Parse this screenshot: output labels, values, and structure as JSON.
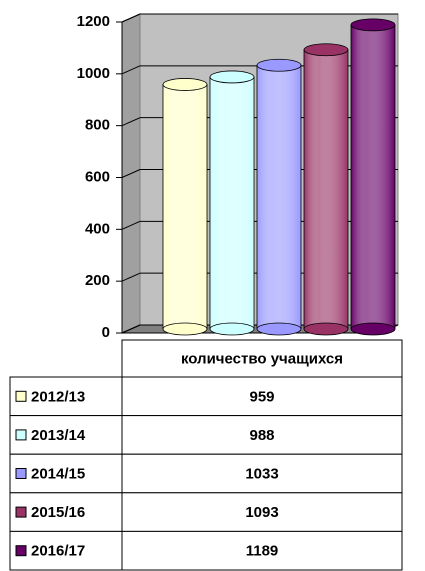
{
  "chart_data": {
    "type": "bar",
    "categories": [
      "количество учащихся"
    ],
    "series": [
      {
        "name": "2012/13",
        "color": "#FFFFCC",
        "values": [
          959
        ]
      },
      {
        "name": "2013/14",
        "color": "#CCFFFF",
        "values": [
          988
        ]
      },
      {
        "name": "2014/15",
        "color": "#9999FF",
        "values": [
          1033
        ]
      },
      {
        "name": "2015/16",
        "color": "#993366",
        "values": [
          1093
        ]
      },
      {
        "name": "2016/17",
        "color": "#660066",
        "values": [
          1189
        ]
      }
    ],
    "ylim": [
      0,
      1200
    ],
    "yticks": [
      0,
      200,
      400,
      600,
      800,
      1000,
      1200
    ],
    "grid": true
  }
}
